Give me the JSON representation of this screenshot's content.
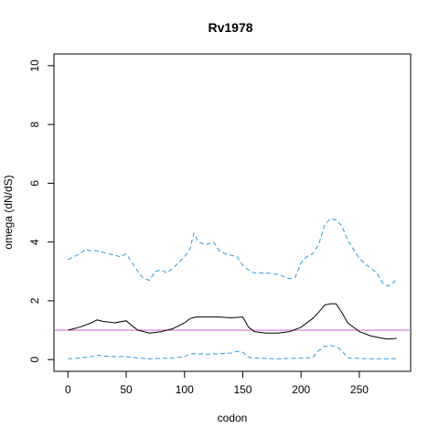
{
  "chart_data": {
    "type": "line",
    "title": "Rv1978",
    "xlabel": "codon",
    "ylabel": "omega (dN/dS)",
    "xlim": [
      -12,
      294
    ],
    "ylim": [
      -0.4,
      10.4
    ],
    "x_ticks": [
      0,
      50,
      100,
      150,
      200,
      250
    ],
    "y_ticks": [
      0,
      2,
      4,
      6,
      8,
      10
    ],
    "grid": false,
    "reference_line": {
      "y": 1,
      "color": "#cc66cc"
    },
    "series": [
      {
        "role": "estimate",
        "color": "#000000",
        "dash": "solid",
        "x": [
          0,
          10,
          20,
          25,
          30,
          40,
          50,
          55,
          60,
          70,
          80,
          90,
          100,
          105,
          110,
          120,
          130,
          140,
          150,
          155,
          160,
          170,
          180,
          190,
          200,
          210,
          215,
          220,
          225,
          230,
          235,
          240,
          250,
          260,
          270,
          275,
          282
        ],
        "y": [
          1.0,
          1.1,
          1.25,
          1.35,
          1.3,
          1.25,
          1.32,
          1.15,
          1.0,
          0.9,
          0.95,
          1.05,
          1.25,
          1.4,
          1.45,
          1.45,
          1.45,
          1.42,
          1.45,
          1.1,
          0.95,
          0.9,
          0.9,
          0.95,
          1.1,
          1.4,
          1.6,
          1.85,
          1.9,
          1.9,
          1.6,
          1.25,
          0.95,
          0.8,
          0.72,
          0.7,
          0.72
        ]
      },
      {
        "role": "upper",
        "color": "#3399dd",
        "dash": "dashed",
        "x": [
          0,
          5,
          10,
          15,
          20,
          25,
          30,
          35,
          40,
          45,
          50,
          55,
          60,
          65,
          70,
          75,
          80,
          85,
          90,
          95,
          100,
          105,
          108,
          112,
          118,
          125,
          130,
          135,
          140,
          145,
          150,
          155,
          160,
          170,
          180,
          190,
          195,
          200,
          205,
          210,
          215,
          220,
          225,
          230,
          235,
          240,
          245,
          250,
          255,
          260,
          265,
          270,
          275,
          280,
          282
        ],
        "y": [
          3.4,
          3.5,
          3.6,
          3.75,
          3.7,
          3.7,
          3.65,
          3.6,
          3.55,
          3.5,
          3.6,
          3.3,
          3.0,
          2.75,
          2.7,
          3.0,
          3.05,
          2.95,
          3.1,
          3.3,
          3.5,
          3.8,
          4.3,
          4.0,
          3.9,
          4.0,
          3.7,
          3.6,
          3.55,
          3.5,
          3.2,
          3.05,
          2.95,
          2.95,
          2.9,
          2.75,
          2.8,
          3.3,
          3.5,
          3.6,
          3.9,
          4.55,
          4.8,
          4.75,
          4.55,
          4.05,
          3.75,
          3.45,
          3.25,
          3.1,
          2.95,
          2.6,
          2.5,
          2.65,
          2.75
        ]
      },
      {
        "role": "lower",
        "color": "#3399dd",
        "dash": "dashed",
        "x": [
          0,
          10,
          20,
          25,
          30,
          40,
          50,
          60,
          70,
          80,
          90,
          100,
          105,
          110,
          120,
          130,
          140,
          145,
          150,
          155,
          160,
          170,
          180,
          190,
          200,
          210,
          215,
          220,
          225,
          230,
          235,
          240,
          250,
          260,
          270,
          282
        ],
        "y": [
          0.03,
          0.05,
          0.1,
          0.15,
          0.12,
          0.1,
          0.1,
          0.05,
          0.03,
          0.04,
          0.06,
          0.1,
          0.2,
          0.2,
          0.18,
          0.2,
          0.22,
          0.28,
          0.25,
          0.08,
          0.05,
          0.04,
          0.03,
          0.04,
          0.05,
          0.06,
          0.3,
          0.45,
          0.48,
          0.45,
          0.3,
          0.06,
          0.04,
          0.03,
          0.03,
          0.03
        ]
      }
    ]
  }
}
